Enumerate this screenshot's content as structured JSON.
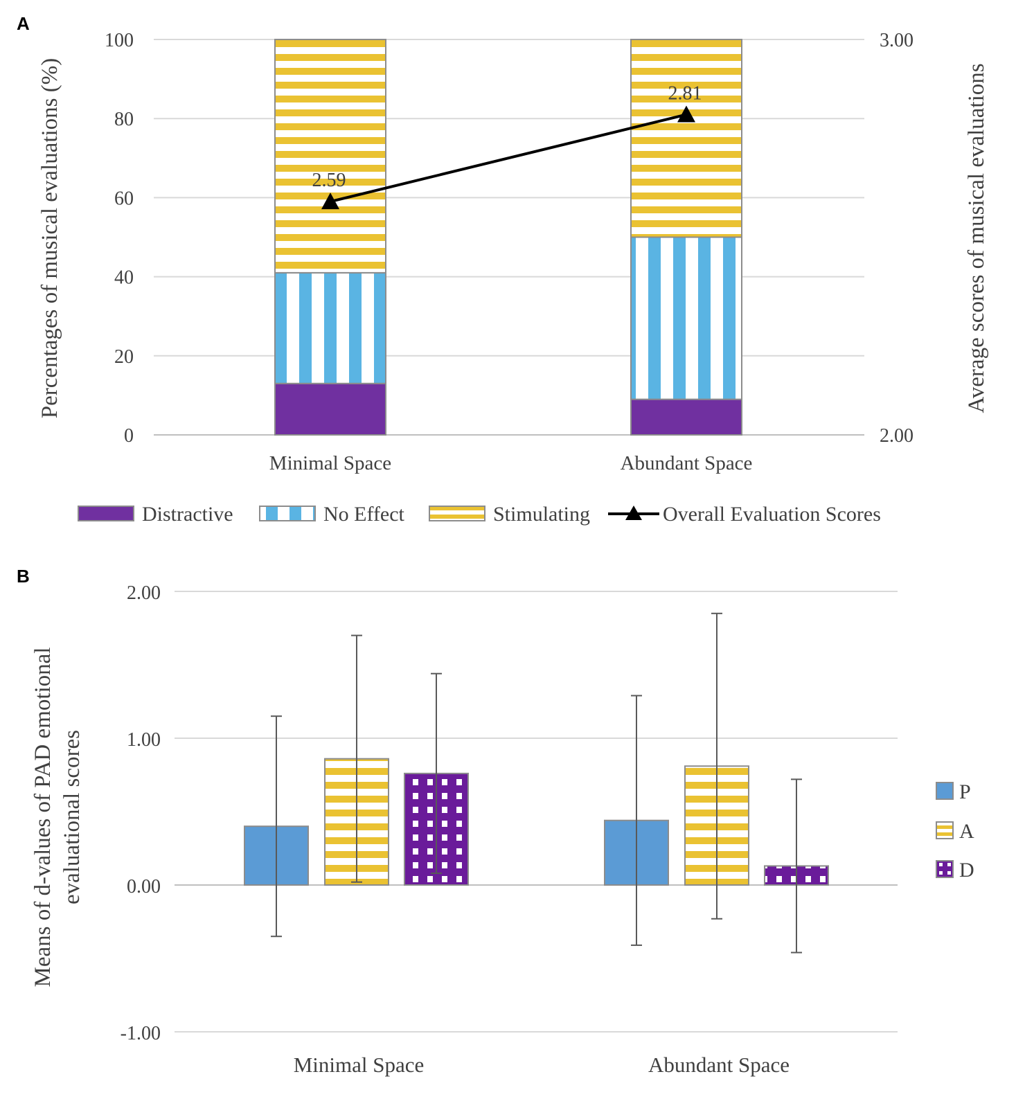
{
  "panels": {
    "a": {
      "label": "A"
    },
    "b": {
      "label": "B"
    }
  },
  "colors": {
    "distractive": "#7030a0",
    "no_effect": "#5ab4e3",
    "stimulating": "#eac232",
    "pad_p": "#5b9bd5",
    "pad_a": "#eac232",
    "pad_d": "#6a1b9a"
  },
  "chart_data": [
    {
      "type": "bar",
      "stacked": true,
      "categories": [
        "Minimal Space",
        "Abundant Space"
      ],
      "series": [
        {
          "name": "Distractive",
          "values": [
            13,
            9
          ]
        },
        {
          "name": "No Effect",
          "values": [
            28,
            41
          ]
        },
        {
          "name": "Stimulating",
          "values": [
            59,
            50
          ]
        }
      ],
      "line_series": {
        "name": "Overall Evaluation Scores",
        "axis": "right",
        "values": [
          2.59,
          2.81
        ],
        "labels": [
          "2.59",
          "2.81"
        ]
      },
      "ylabel": "Percentages of musical evaluations (%)",
      "y2label": "Average scores of musical evaluations",
      "ylim": [
        0,
        100
      ],
      "yticks": [
        0,
        20,
        40,
        60,
        80,
        100
      ],
      "y2lim": [
        2.0,
        3.0
      ],
      "y2ticks": [
        "2.00",
        "3.00"
      ],
      "legend": [
        "Distractive",
        "No Effect",
        "Stimulating",
        "Overall Evaluation Scores"
      ],
      "legend_position": "bottom",
      "grid": true
    },
    {
      "type": "bar",
      "categories": [
        "Minimal Space",
        "Abundant Space"
      ],
      "series": [
        {
          "name": "P",
          "values": [
            0.4,
            0.44
          ],
          "error_low": [
            -0.35,
            -0.41
          ],
          "error_high": [
            1.15,
            1.29
          ]
        },
        {
          "name": "A",
          "values": [
            0.86,
            0.81
          ],
          "error_low": [
            0.02,
            -0.23
          ],
          "error_high": [
            1.7,
            1.85
          ]
        },
        {
          "name": "D",
          "values": [
            0.76,
            0.13
          ],
          "error_low": [
            0.08,
            -0.46
          ],
          "error_high": [
            1.44,
            0.72
          ]
        }
      ],
      "ylabel_lines": [
        "Means of d-values of PAD emotional",
        "evaluational scores"
      ],
      "ylim": [
        -1.0,
        2.0
      ],
      "yticks": [
        "-1.00",
        "0.00",
        "1.00",
        "2.00"
      ],
      "legend": [
        "P",
        "A",
        "D"
      ],
      "legend_position": "right",
      "grid": true
    }
  ]
}
